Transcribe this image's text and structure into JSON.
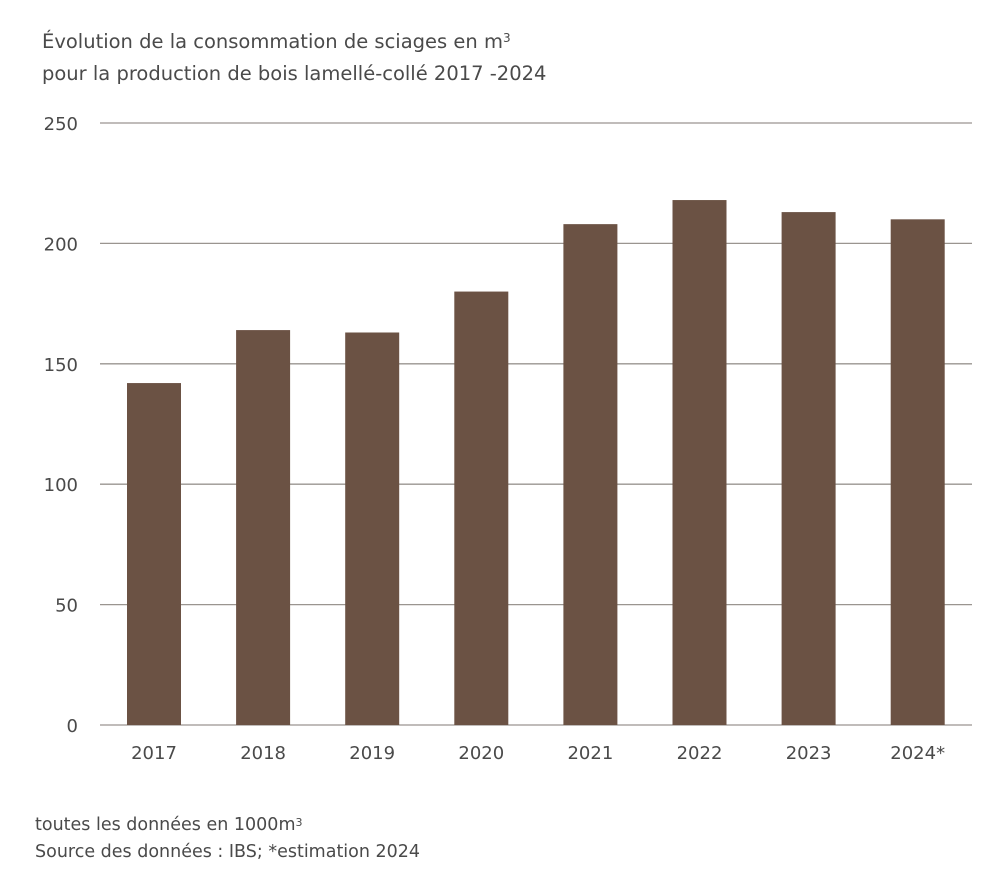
{
  "chart_data": {
    "type": "bar",
    "title_line1": "Évolution de la consommation de sciages en m",
    "title_sup": "3",
    "title_line2": "pour la production de bois lamellé-collé 2017 -2024",
    "categories": [
      "2017",
      "2018",
      "2019",
      "2020",
      "2021",
      "2022",
      "2023",
      "2024*"
    ],
    "values": [
      142,
      164,
      163,
      180,
      208,
      218,
      213,
      210
    ],
    "ylim": [
      0,
      250
    ],
    "yticks": [
      0,
      50,
      100,
      150,
      200,
      250
    ],
    "grid": true,
    "bar_color": "#6b5244",
    "grid_color": "#9a9590",
    "xlabel": "",
    "ylabel": ""
  },
  "footer": {
    "units_text": "toutes les données en 1000m",
    "units_sup": "3",
    "source": "Source des données : IBS; *estimation 2024"
  }
}
